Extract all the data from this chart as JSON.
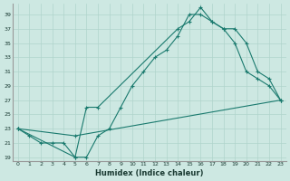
{
  "xlabel": "Humidex (Indice chaleur)",
  "bg_color": "#cde8e2",
  "line_color": "#1a7a6e",
  "grid_color": "#b0d4cc",
  "xlim": [
    -0.5,
    23.5
  ],
  "ylim": [
    18.5,
    40.5
  ],
  "yticks": [
    19,
    21,
    23,
    25,
    27,
    29,
    31,
    33,
    35,
    37,
    39
  ],
  "xticks": [
    0,
    1,
    2,
    3,
    4,
    5,
    6,
    7,
    8,
    9,
    10,
    11,
    12,
    13,
    14,
    15,
    16,
    17,
    18,
    19,
    20,
    21,
    22,
    23
  ],
  "line1_x": [
    0,
    1,
    2,
    3,
    4,
    5,
    6,
    7,
    8,
    9,
    10,
    11,
    12,
    13,
    14,
    15,
    16,
    17,
    18,
    19,
    20,
    21,
    22,
    23
  ],
  "line1_y": [
    23,
    22,
    21,
    21,
    21,
    19,
    19,
    22,
    23,
    26,
    29,
    31,
    33,
    34,
    36,
    39,
    39,
    38,
    37,
    35,
    31,
    30,
    29,
    27
  ],
  "line2_x": [
    0,
    5,
    6,
    7,
    14,
    15,
    16,
    17,
    18,
    19,
    20,
    21,
    22,
    23
  ],
  "line2_y": [
    23,
    19,
    26,
    26,
    37,
    38,
    40,
    38,
    37,
    37,
    35,
    31,
    30,
    27
  ],
  "line3_x": [
    0,
    5,
    23
  ],
  "line3_y": [
    23,
    22,
    27
  ]
}
